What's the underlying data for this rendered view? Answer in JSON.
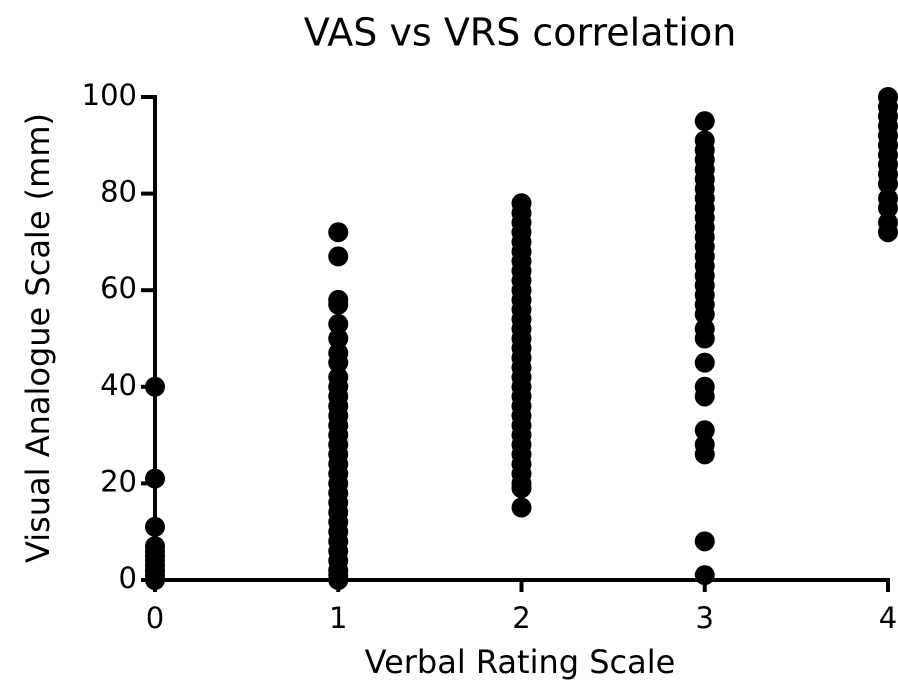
{
  "chart_data": {
    "type": "scatter",
    "title": "VAS vs VRS correlation",
    "x_label": "Verbal Rating Scale",
    "y_label": "Visual Analogue Scale (mm)",
    "color": "#000000",
    "xlim": [
      0,
      4
    ],
    "xticks": [
      0,
      1,
      2,
      3,
      4
    ],
    "ylim": [
      0,
      100
    ],
    "yticks": [
      0,
      20,
      40,
      60,
      80,
      100
    ],
    "x": [
      0,
      0,
      0,
      0,
      0,
      0,
      0,
      0,
      0,
      0,
      0,
      1,
      1,
      1,
      1,
      1,
      1,
      1,
      1,
      1,
      1,
      1,
      1,
      1,
      1,
      1,
      1,
      1,
      1,
      1,
      1,
      1,
      1,
      1,
      1,
      1,
      1,
      1,
      1,
      1,
      1,
      1,
      2,
      2,
      2,
      2,
      2,
      2,
      2,
      2,
      2,
      2,
      2,
      2,
      2,
      2,
      2,
      2,
      2,
      2,
      2,
      2,
      2,
      2,
      2,
      2,
      2,
      2,
      2,
      2,
      2,
      2,
      2,
      2,
      3,
      3,
      3,
      3,
      3,
      3,
      3,
      3,
      3,
      3,
      3,
      3,
      3,
      3,
      3,
      3,
      3,
      3,
      3,
      3,
      3,
      3,
      3,
      3,
      3,
      3,
      3,
      3,
      3,
      3,
      4,
      4,
      4,
      4,
      4,
      4,
      4,
      4,
      4,
      4,
      4,
      4,
      4,
      4
    ],
    "values": [
      40,
      21,
      11,
      7,
      6,
      5,
      4,
      3,
      2,
      1,
      0,
      72,
      67,
      58,
      57,
      53,
      50,
      47,
      45,
      42,
      40,
      38,
      36,
      34,
      32,
      30,
      28,
      26,
      24,
      22,
      20,
      18,
      16,
      14,
      12,
      10,
      8,
      6,
      4,
      2,
      1,
      0,
      78,
      76,
      74,
      72,
      70,
      68,
      66,
      64,
      62,
      60,
      58,
      56,
      54,
      52,
      50,
      48,
      46,
      44,
      42,
      40,
      38,
      36,
      34,
      32,
      30,
      28,
      26,
      24,
      22,
      20,
      19,
      15,
      95,
      91,
      89,
      87,
      85,
      83,
      81,
      79,
      77,
      75,
      73,
      71,
      69,
      67,
      65,
      63,
      61,
      59,
      57,
      55,
      52,
      50,
      45,
      40,
      38,
      31,
      28,
      26,
      8,
      1,
      100,
      98,
      96,
      94,
      92,
      90,
      88,
      86,
      84,
      82,
      79,
      77,
      74,
      72
    ]
  }
}
